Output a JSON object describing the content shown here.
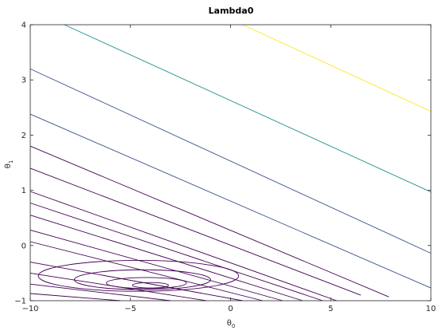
{
  "chart_data": {
    "type": "contour",
    "title": "Lambda0",
    "xlabel": "θ",
    "xlabel_subscript": "0",
    "ylabel": "θ",
    "ylabel_subscript": "1",
    "xlim": [
      -10,
      10
    ],
    "ylim": [
      -1,
      4
    ],
    "x_ticks": [
      -10,
      -5,
      0,
      5,
      10
    ],
    "x_tick_labels": [
      "−10",
      "−5",
      "0",
      "5",
      "10"
    ],
    "y_ticks": [
      -1,
      0,
      1,
      2,
      3,
      4
    ],
    "y_tick_labels": [
      "−1",
      "0",
      "1",
      "2",
      "3",
      "4"
    ],
    "grid": false,
    "colormap": [
      "#440154",
      "#3b528b",
      "#21918c",
      "#5ec962",
      "#fde725"
    ],
    "ellipses": [
      {
        "center": [
          -4.0,
          -0.72
        ],
        "half_width": 0.9,
        "half_height": 0.05,
        "color": "#440154"
      },
      {
        "center": [
          -4.2,
          -0.68
        ],
        "half_width": 2.0,
        "half_height": 0.1,
        "color": "#440154"
      },
      {
        "center": [
          -4.4,
          -0.62
        ],
        "half_width": 3.4,
        "half_height": 0.18,
        "color": "#440154"
      },
      {
        "center": [
          -4.6,
          -0.55
        ],
        "half_width": 5.0,
        "half_height": 0.28,
        "color": "#440154"
      }
    ],
    "open_contours": [
      {
        "points": [
          [
            -10,
            -0.87
          ],
          [
            -5.5,
            -1.0
          ]
        ],
        "color": "#440154"
      },
      {
        "points": [
          [
            -10,
            -0.7
          ],
          [
            -3.0,
            -1.0
          ]
        ],
        "color": "#440154"
      },
      {
        "points": [
          [
            -10,
            -0.5
          ],
          [
            -1.2,
            -1.0
          ]
        ],
        "color": "#440154"
      },
      {
        "points": [
          [
            -10,
            -0.3
          ],
          [
            0.6,
            -1.0
          ]
        ],
        "color": "#440154"
      },
      {
        "points": [
          [
            -10,
            0.07
          ],
          [
            1.6,
            -1.0
          ]
        ],
        "color": "#440154"
      },
      {
        "points": [
          [
            -10,
            0.28
          ],
          [
            2.6,
            -1.0
          ]
        ],
        "color": "#440154"
      },
      {
        "points": [
          [
            -10,
            0.55
          ],
          [
            3.6,
            -1.0
          ]
        ],
        "color": "#440154"
      },
      {
        "points": [
          [
            -10,
            0.77
          ],
          [
            4.6,
            -1.0
          ]
        ],
        "color": "#440154"
      },
      {
        "points": [
          [
            -10,
            0.98
          ],
          [
            5.3,
            -1.0
          ]
        ],
        "color": "#440154"
      },
      {
        "points": [
          [
            -10,
            1.4
          ],
          [
            6.5,
            -0.9
          ]
        ],
        "color": "#440154"
      },
      {
        "points": [
          [
            -10,
            1.8
          ],
          [
            7.9,
            -0.93
          ]
        ],
        "color": "#440154"
      },
      {
        "points": [
          [
            -10,
            2.38
          ],
          [
            10,
            -0.77
          ]
        ],
        "color": "#3b528b"
      },
      {
        "points": [
          [
            -10,
            3.2
          ],
          [
            10,
            -0.14
          ]
        ],
        "color": "#3b528b"
      },
      {
        "points": [
          [
            -8.3,
            4.0
          ],
          [
            10,
            0.97
          ]
        ],
        "color": "#21918c"
      },
      {
        "points": [
          [
            0.6,
            4.0
          ],
          [
            10,
            2.43
          ]
        ],
        "color": "#fde725"
      }
    ]
  }
}
